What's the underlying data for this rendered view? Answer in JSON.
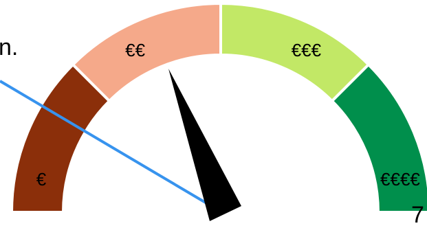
{
  "gauge": {
    "segments": [
      {
        "label": "€",
        "color": "#8b2f0a"
      },
      {
        "label": "€€",
        "color": "#f5a98a"
      },
      {
        "label": "€€€",
        "color": "#c2e866"
      },
      {
        "label": "€€€€",
        "color": "#008f4c"
      }
    ],
    "needle_color": "#000000",
    "pointer_line_color": "#3793ee"
  },
  "fragments": {
    "top_left": "n.",
    "bottom_right": "7"
  }
}
